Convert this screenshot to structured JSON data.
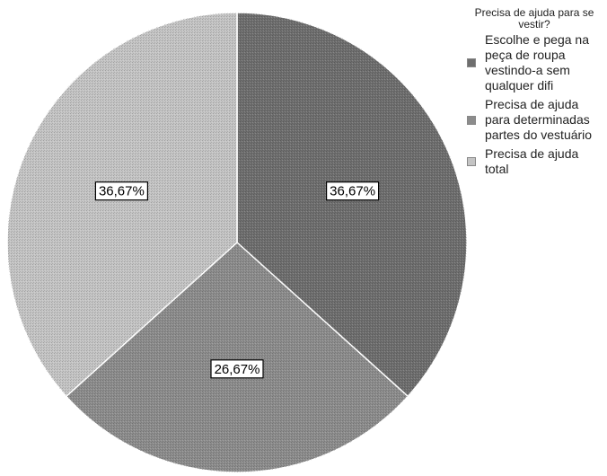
{
  "chart_data": {
    "type": "pie",
    "title": "",
    "legend": {
      "title": "Precisa de ajuda para se vestir?",
      "placement": "right"
    },
    "categories": [
      "Escolhe e pega na peça de roupa vestindo-a sem qualquer difi",
      "Precisa de ajuda para determinadas partes do vestuário",
      "Precisa de ajuda total"
    ],
    "values": [
      36.67,
      26.67,
      36.67
    ],
    "value_labels": [
      "36,67%",
      "26,67%",
      "36,67%"
    ],
    "colors": [
      "#6e6e6e",
      "#8c8c8c",
      "#c4c4c4"
    ],
    "start_angle_deg": 0,
    "direction": "clockwise"
  }
}
